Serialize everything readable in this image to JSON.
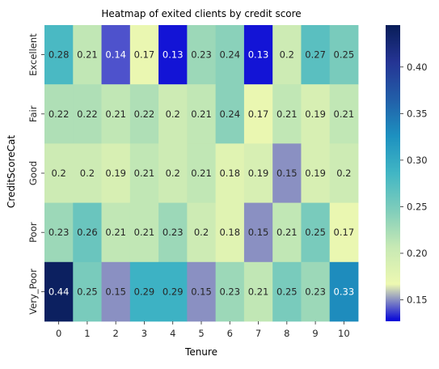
{
  "chart_data": {
    "type": "heatmap",
    "title": "Heatmap of exited clients by credit score",
    "xlabel": "Tenure",
    "ylabel": "CreditScoreCat",
    "x": [
      "0",
      "1",
      "2",
      "3",
      "4",
      "5",
      "6",
      "7",
      "8",
      "9",
      "10"
    ],
    "y": [
      "Excellent",
      "Fair",
      "Good",
      "Poor",
      "Very_Poor"
    ],
    "values": [
      [
        0.28,
        0.21,
        0.14,
        0.17,
        0.13,
        0.23,
        0.24,
        0.13,
        0.2,
        0.27,
        0.25
      ],
      [
        0.22,
        0.22,
        0.21,
        0.22,
        0.2,
        0.21,
        0.24,
        0.17,
        0.21,
        0.19,
        0.21
      ],
      [
        0.2,
        0.2,
        0.19,
        0.21,
        0.2,
        0.21,
        0.18,
        0.19,
        0.15,
        0.19,
        0.2
      ],
      [
        0.23,
        0.26,
        0.21,
        0.21,
        0.23,
        0.2,
        0.18,
        0.15,
        0.21,
        0.25,
        0.17
      ],
      [
        0.44,
        0.25,
        0.15,
        0.29,
        0.29,
        0.15,
        0.23,
        0.21,
        0.25,
        0.23,
        0.33
      ]
    ],
    "colormap": "YlGnBu",
    "colorbar": {
      "range": [
        0.127,
        0.445
      ],
      "ticks": [
        0.15,
        0.2,
        0.25,
        0.3,
        0.35,
        0.4
      ]
    }
  }
}
